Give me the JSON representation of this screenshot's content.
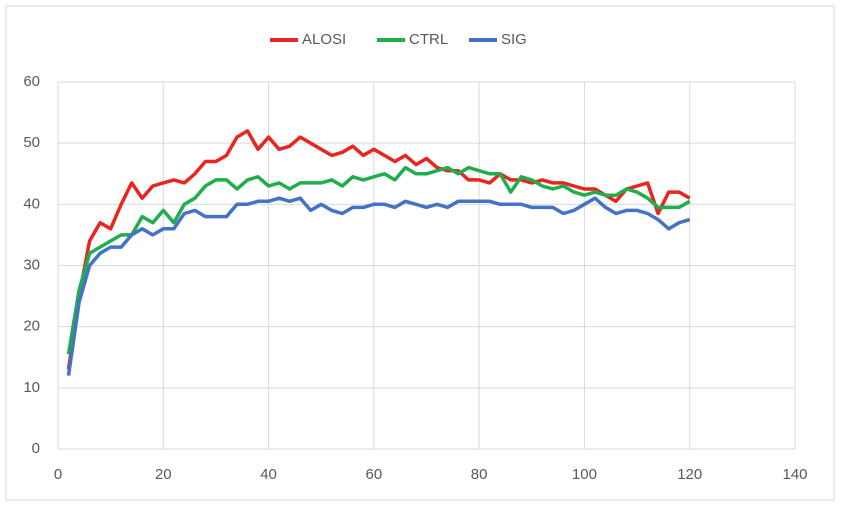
{
  "chart_data": {
    "type": "line",
    "x": [
      2,
      4,
      6,
      8,
      10,
      12,
      14,
      16,
      18,
      20,
      22,
      24,
      26,
      28,
      30,
      32,
      34,
      36,
      38,
      40,
      42,
      44,
      46,
      48,
      50,
      52,
      54,
      56,
      58,
      60,
      62,
      64,
      66,
      68,
      70,
      72,
      74,
      76,
      78,
      80,
      82,
      84,
      86,
      88,
      90,
      92,
      94,
      96,
      98,
      100,
      102,
      104,
      106,
      108,
      110,
      112,
      114,
      116,
      118,
      120
    ],
    "series": [
      {
        "name": "ALOSI",
        "color": "#e8251f",
        "values": [
          13,
          25,
          34,
          37,
          36,
          40,
          43.5,
          41,
          43,
          43.5,
          44,
          43.5,
          45,
          47,
          47,
          48,
          51,
          52,
          49,
          51,
          49,
          49.5,
          51,
          50,
          49,
          48,
          48.5,
          49.5,
          48,
          49,
          48,
          47,
          48,
          46.5,
          47.5,
          46,
          45.5,
          45.5,
          44,
          44,
          43.5,
          45,
          44,
          44,
          43.5,
          44,
          43.5,
          43.5,
          43,
          42.5,
          42.5,
          41.5,
          40.5,
          42.5,
          43,
          43.5,
          38.5,
          42,
          42,
          41
        ]
      },
      {
        "name": "CTRL",
        "color": "#1fae4b",
        "values": [
          15.5,
          26,
          32,
          33,
          34,
          35,
          35,
          38,
          37,
          39,
          37,
          40,
          41,
          43,
          44,
          44,
          42.5,
          44,
          44.5,
          43,
          43.5,
          42.5,
          43.5,
          43.5,
          43.5,
          44,
          43,
          44.5,
          44,
          44.5,
          45,
          44,
          46,
          45,
          45,
          45.5,
          46,
          45,
          46,
          45.5,
          45,
          45,
          42,
          44.5,
          44,
          43,
          42.5,
          43,
          42,
          41.5,
          42,
          41.5,
          41.5,
          42.5,
          42,
          41,
          39.5,
          39.5,
          39.5,
          40.5
        ]
      },
      {
        "name": "SIG",
        "color": "#4472c4",
        "values": [
          12,
          24,
          30,
          32,
          33,
          33,
          35,
          36,
          35,
          36,
          36,
          38.5,
          39,
          38,
          38,
          38,
          40,
          40,
          40.5,
          40.5,
          41,
          40.5,
          41,
          39,
          40,
          39,
          38.5,
          39.5,
          39.5,
          40,
          40,
          39.5,
          40.5,
          40,
          39.5,
          40,
          39.5,
          40.5,
          40.5,
          40.5,
          40.5,
          40,
          40,
          40,
          39.5,
          39.5,
          39.5,
          38.5,
          39,
          40,
          41,
          39.5,
          38.5,
          39,
          39,
          38.5,
          37.5,
          36,
          37,
          37.5
        ]
      }
    ],
    "xlim": [
      0,
      140
    ],
    "xticks": [
      0,
      20,
      40,
      60,
      80,
      100,
      120,
      140
    ],
    "ylim": [
      0,
      60
    ],
    "yticks": [
      0,
      10,
      20,
      30,
      40,
      50,
      60
    ],
    "grid": true,
    "legend": "top"
  }
}
